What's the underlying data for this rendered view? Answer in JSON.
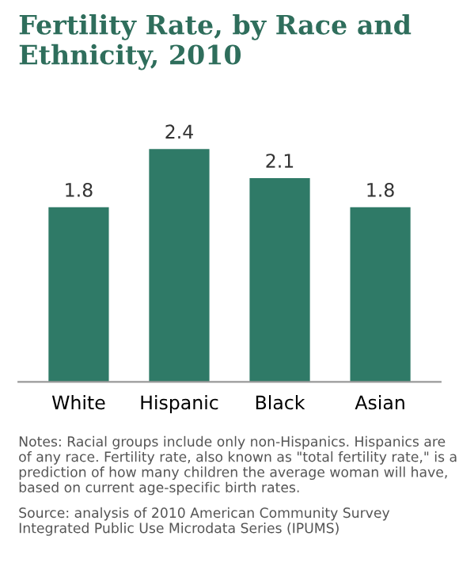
{
  "chart_data": {
    "type": "bar",
    "title": "Fertility Rate, by Race and Ethnicity, 2010",
    "categories": [
      "White",
      "Hispanic",
      "Black",
      "Asian"
    ],
    "values": [
      1.8,
      2.4,
      2.1,
      1.8
    ],
    "color": "#2f7a67",
    "data_labels": true,
    "grid": false,
    "legend": false,
    "annotations": [
      "Notes: Racial groups include only non-Hispanics. Hispanics are of any race. Fertility rate, also known as \"total fertility rate,\" is a prediction of how many children the average woman will have, based on current age-specific birth rates.",
      "Source: analysis of 2010 American Community Survey Integrated Public Use Microdata Series (IPUMS)"
    ]
  }
}
